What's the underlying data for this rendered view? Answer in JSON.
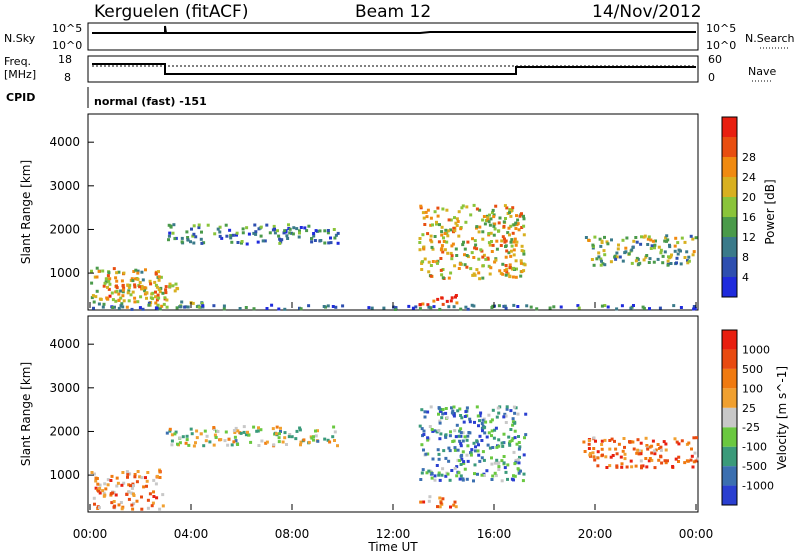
{
  "header": {
    "station": "Kerguelen (fitACF)",
    "beam": "Beam 12",
    "date": "14/Nov/2012"
  },
  "summary_panels": {
    "nsky": {
      "label": "N.Sky",
      "tick_top": "10^5",
      "tick_bottom": "10^0"
    },
    "nsearch": {
      "label": "N.Search",
      "tick_top": "10^5",
      "tick_bottom": "10^0"
    },
    "freq": {
      "label_line1": "Freq.",
      "label_line2": "[MHz]",
      "tick_top": "18",
      "tick_bottom": "8"
    },
    "nave": {
      "label": "Nave",
      "tick_top": "60",
      "tick_bottom": "0"
    },
    "cpid": {
      "label": "CPID",
      "value": "normal (fast) -151"
    }
  },
  "chart_data": [
    {
      "type": "heatmap",
      "title": "",
      "xlabel": "Time UT",
      "ylabel": "Slant Range [km]",
      "x_ticks": [
        "00:00",
        "04:00",
        "08:00",
        "12:00",
        "16:00",
        "20:00",
        "00:00"
      ],
      "xlim_hours": [
        0,
        24
      ],
      "y_ticks": [
        1000,
        2000,
        3000,
        4000
      ],
      "ylim": [
        200,
        4600
      ],
      "colorbar": {
        "label": "Power [dB]",
        "ticks": [
          4,
          8,
          12,
          16,
          20,
          24,
          28
        ],
        "colors": [
          "#1f2bdc",
          "#2e4fb0",
          "#3a7a8a",
          "#4a9a4a",
          "#8ac43a",
          "#d8b020",
          "#f08a10",
          "#e84e10",
          "#e81f10"
        ]
      },
      "echo_regions": [
        {
          "t0": 0.0,
          "t1": 2.9,
          "r0": 250,
          "r1": 1150,
          "level": 0.55
        },
        {
          "t0": 2.0,
          "t1": 4.5,
          "r0": 250,
          "r1": 400,
          "level": 0.45
        },
        {
          "t0": 0.5,
          "t1": 3.5,
          "r0": 400,
          "r1": 800,
          "level": 0.7
        },
        {
          "t0": 3.0,
          "t1": 9.8,
          "r0": 1700,
          "r1": 2150,
          "level": 0.3
        },
        {
          "t0": 13.0,
          "t1": 14.5,
          "r0": 300,
          "r1": 550,
          "level": 0.95
        },
        {
          "t0": 13.0,
          "t1": 17.2,
          "r0": 900,
          "r1": 2600,
          "level": 0.6
        },
        {
          "t0": 19.5,
          "t1": 24.0,
          "r0": 1200,
          "r1": 1900,
          "level": 0.45
        },
        {
          "t0": 0.0,
          "t1": 24.0,
          "r0": 200,
          "r1": 300,
          "level": 0.2
        }
      ]
    },
    {
      "type": "heatmap",
      "title": "",
      "xlabel": "Time UT",
      "ylabel": "Slant Range [km]",
      "x_ticks": [
        "00:00",
        "04:00",
        "08:00",
        "12:00",
        "16:00",
        "20:00",
        "00:00"
      ],
      "xlim_hours": [
        0,
        24
      ],
      "y_ticks": [
        1000,
        2000,
        3000,
        4000
      ],
      "ylim": [
        200,
        4600
      ],
      "colorbar": {
        "label": "Velocity [m s^-1]",
        "ticks": [
          1000,
          500,
          100,
          25,
          -25,
          -100,
          -500,
          -1000
        ],
        "colors": [
          "#2a3fd0",
          "#3b6fb0",
          "#3a9a7a",
          "#6ac840",
          "#c8c8c8",
          "#f0a030",
          "#f07a10",
          "#e84a10",
          "#e81f10"
        ]
      },
      "echo_regions": [
        {
          "t0": 0.0,
          "t1": 2.9,
          "r0": 250,
          "r1": 1150,
          "level": 0.7
        },
        {
          "t0": 3.0,
          "t1": 9.8,
          "r0": 1700,
          "r1": 2150,
          "level": 0.45
        },
        {
          "t0": 13.0,
          "t1": 14.5,
          "r0": 300,
          "r1": 550,
          "level": 0.75
        },
        {
          "t0": 13.0,
          "t1": 17.2,
          "r0": 900,
          "r1": 2600,
          "level": 0.25
        },
        {
          "t0": 19.5,
          "t1": 24.0,
          "r0": 1200,
          "r1": 1900,
          "level": 0.75
        }
      ]
    }
  ]
}
